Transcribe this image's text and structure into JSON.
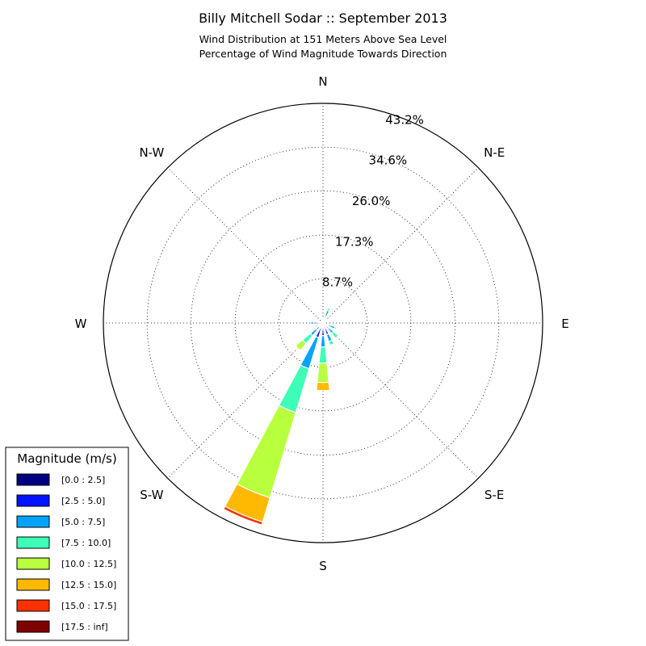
{
  "chart_data": {
    "type": "windrose",
    "title": "Billy Mitchell Sodar :: September 2013",
    "subtitle_lines": [
      "Wind Distribution at 151 Meters Above Sea Level",
      "Percentage of Wind Magnitude Towards Direction"
    ],
    "directions": [
      {
        "label": "N",
        "angle": 0
      },
      {
        "label": "N-E",
        "angle": 45
      },
      {
        "label": "E",
        "angle": 90
      },
      {
        "label": "S-E",
        "angle": 135
      },
      {
        "label": "S",
        "angle": 180
      },
      {
        "label": "S-W",
        "angle": 225
      },
      {
        "label": "W",
        "angle": 270
      },
      {
        "label": "N-W",
        "angle": 315
      }
    ],
    "radial_ticks": [
      8.7,
      17.3,
      26.0,
      34.6,
      43.2
    ],
    "radial_tick_labels": [
      "8.7%",
      "17.3%",
      "26.0%",
      "34.6%",
      "43.2%"
    ],
    "rmax": 43.2,
    "legend_title": "Magnitude (m/s)",
    "bins": [
      {
        "label": "[0.0 : 2.5]",
        "color": "#000080"
      },
      {
        "label": "[2.5 : 5.0]",
        "color": "#0014ff"
      },
      {
        "label": "[5.0 : 7.5]",
        "color": "#00a4ff"
      },
      {
        "label": "[7.5 : 10.0]",
        "color": "#3effb8"
      },
      {
        "label": "[10.0 : 12.5]",
        "color": "#b8ff3e"
      },
      {
        "label": "[12.5 : 15.0]",
        "color": "#ffb900"
      },
      {
        "label": "[15.0 : 17.5]",
        "color": "#ff3000"
      },
      {
        "label": "[17.5 : inf]",
        "color": "#800000"
      }
    ],
    "sector_width_deg": 11.25,
    "sectors": [
      {
        "direction": 0,
        "values": [
          0.3,
          0.4,
          0.0,
          0,
          0,
          0,
          0,
          0
        ]
      },
      {
        "direction": 22.5,
        "values": [
          0.3,
          1.0,
          1.3,
          0.5,
          0,
          0,
          0,
          0
        ]
      },
      {
        "direction": 45,
        "values": [
          0.2,
          0.3,
          0.3,
          0,
          0,
          0,
          0,
          0
        ]
      },
      {
        "direction": 67.5,
        "values": [
          0.2,
          0.2,
          0,
          0,
          0,
          0,
          0,
          0
        ]
      },
      {
        "direction": 90,
        "values": [
          0.2,
          0.3,
          0,
          0,
          0,
          0,
          0,
          0
        ]
      },
      {
        "direction": 112.5,
        "values": [
          0.3,
          0.8,
          1.4,
          0.3,
          0,
          0,
          0,
          0
        ]
      },
      {
        "direction": 135,
        "values": [
          0.4,
          1.0,
          1.3,
          1.2,
          0,
          0,
          0,
          0
        ]
      },
      {
        "direction": 157.5,
        "values": [
          0.6,
          1.8,
          1.4,
          0.8,
          0,
          0,
          0,
          0
        ]
      },
      {
        "direction": 180,
        "values": [
          0.7,
          1.8,
          2.2,
          3.2,
          3.8,
          1.6,
          0,
          0
        ]
      },
      {
        "direction": 202.5,
        "values": [
          1.0,
          2.0,
          6.4,
          9.0,
          17.5,
          5.0,
          0.6,
          0
        ]
      },
      {
        "direction": 225,
        "values": [
          0.5,
          1.2,
          1.5,
          2.0,
          1.8,
          0,
          0,
          0
        ]
      },
      {
        "direction": 247.5,
        "values": [
          0.4,
          0.6,
          0.5,
          0,
          0,
          0,
          0,
          0
        ]
      },
      {
        "direction": 270,
        "values": [
          0.4,
          1.4,
          0.6,
          0,
          0,
          0,
          0,
          0
        ]
      },
      {
        "direction": 292.5,
        "values": [
          0.3,
          0.3,
          0,
          0,
          0,
          0,
          0,
          0
        ]
      },
      {
        "direction": 315,
        "values": [
          0.2,
          0.3,
          0,
          0,
          0,
          0,
          0,
          0
        ]
      },
      {
        "direction": 337.5,
        "values": [
          0.3,
          0.4,
          0,
          0,
          0,
          0,
          0,
          0
        ]
      }
    ],
    "grid": true,
    "legend_position": "bottom-left"
  }
}
